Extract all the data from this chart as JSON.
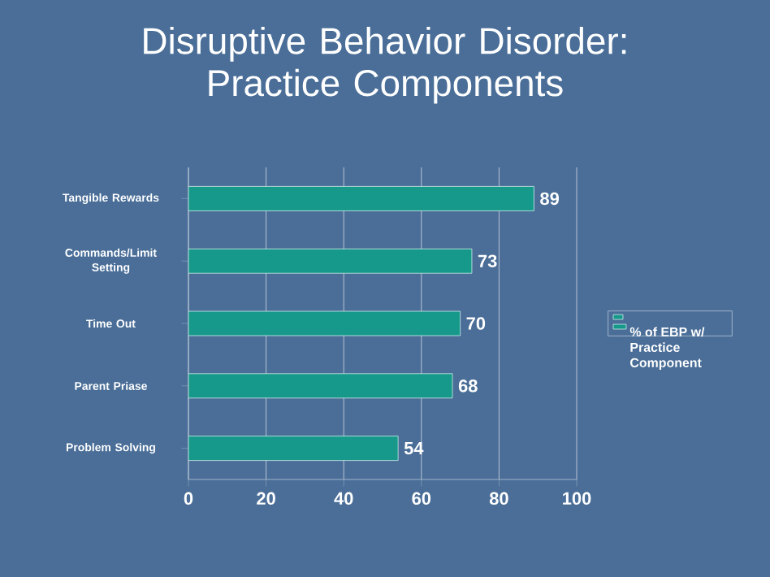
{
  "chart_data": {
    "type": "bar",
    "orientation": "horizontal",
    "title": "Disruptive Behavior Disorder: Practice Components",
    "categories": [
      "Tangible Rewards",
      "Commands/Limit Setting",
      "Time Out",
      "Parent Priase",
      "Problem Solving"
    ],
    "series": [
      {
        "name": "% of EBP w/ Practice Component",
        "color": "#16998b",
        "values": [
          89,
          73,
          70,
          68,
          54
        ]
      }
    ],
    "xlim": [
      0,
      100
    ],
    "xticks": [
      0,
      20,
      40,
      60,
      80,
      100
    ],
    "grid": "x",
    "legend": "right",
    "data_labels": true
  }
}
